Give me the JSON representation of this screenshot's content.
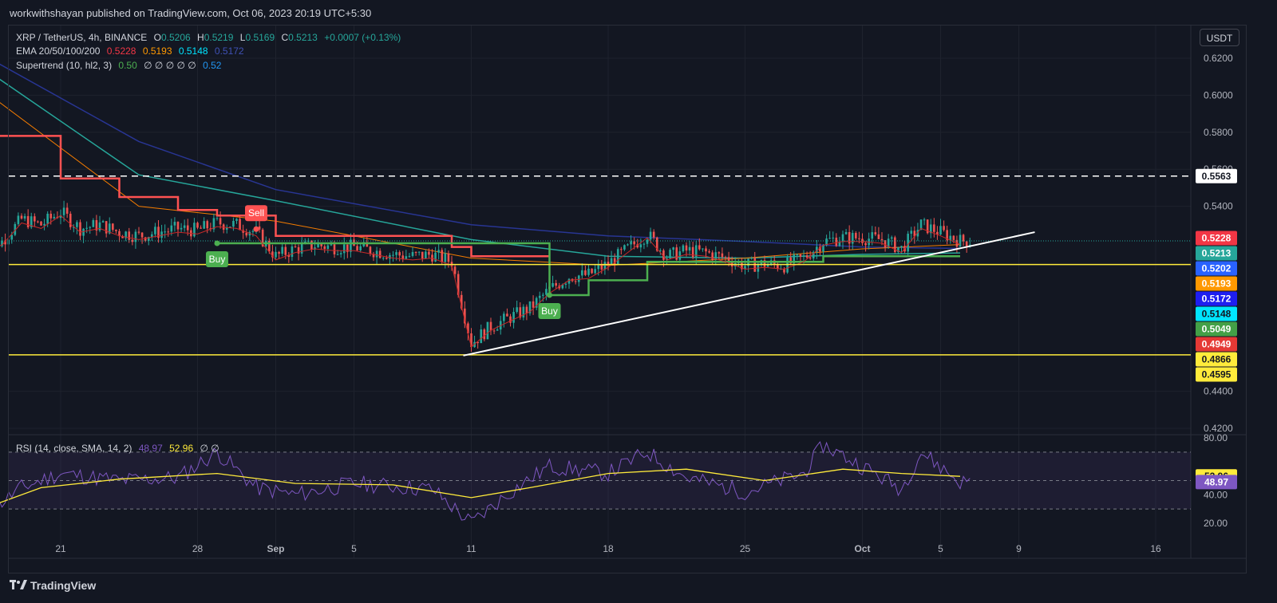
{
  "header": {
    "published": "workwithshayan published on TradingView.com, Oct 06, 2023 20:19 UTC+5:30"
  },
  "legend": {
    "symbol": "XRP / TetherUS, 4h, BINANCE",
    "o_label": "O",
    "o": "0.5206",
    "h_label": "H",
    "h": "0.5219",
    "l_label": "L",
    "l": "0.5169",
    "c_label": "C",
    "c": "0.5213",
    "change": "+0.0007 (+0.13%)",
    "ema_label": "EMA 20/50/100/200",
    "ema20": "0.5228",
    "ema50": "0.5193",
    "ema100": "0.5148",
    "ema200": "0.5172",
    "st_label": "Supertrend (10, hl2, 3)",
    "st_value": "0.50",
    "st_blank": "∅ ∅ ∅ ∅ ∅",
    "st_value2": "0.52",
    "rsi_label": "RSI (14, close, SMA, 14, 2)",
    "rsi_value": "48.97",
    "rsi_sma": "52.96",
    "rsi_blank": "∅ ∅"
  },
  "currency_button": "USDT",
  "footer": {
    "brand": "TradingView",
    "logo_icon": "tradingview-logo-icon"
  },
  "colors": {
    "bg": "#131722",
    "up": "#26a69a",
    "down": "#ef5350",
    "grid": "#1e222d",
    "ema20": "#f23645",
    "ema50": "#ff9800",
    "ema100": "#00bcd4",
    "ema200": "#2a2e9e",
    "st_up": "#4caf50",
    "st_down": "#ff5252",
    "level": "#ffeb3b",
    "rsi": "#7e57c2",
    "rsi_sma": "#ffeb3b"
  },
  "chart_data": {
    "type": "candlestick",
    "symbol": "XRP / TetherUS",
    "timeframe": "4h",
    "exchange": "BINANCE",
    "price_axis": {
      "ticks": [
        "0.6200",
        "0.6000",
        "0.5800",
        "0.5600",
        "0.5400",
        "0.4400",
        "0.4200"
      ],
      "range": [
        0.415,
        0.627
      ]
    },
    "time_axis": {
      "ticks": [
        "21",
        "28",
        "Sep",
        "5",
        "11",
        "18",
        "25",
        "Oct",
        "5",
        "9",
        "16"
      ],
      "dates": [
        "2023-08-21",
        "2023-08-28",
        "2023-09-01",
        "2023-09-05",
        "2023-09-11",
        "2023-09-18",
        "2023-09-25",
        "2023-10-01",
        "2023-10-05",
        "2023-10-09",
        "2023-10-16"
      ]
    },
    "price_labels": [
      {
        "text": "0.5563",
        "value": 0.5563,
        "bg": "#ffffff",
        "fg": "#131722"
      },
      {
        "text": "0.5228",
        "value": 0.5228,
        "bg": "#f23645",
        "fg": "#ffffff"
      },
      {
        "text": "0.5213",
        "value": 0.5213,
        "bg": "#26a69a",
        "fg": "#ffffff"
      },
      {
        "text": "0.5202",
        "value": 0.5202,
        "bg": "#2962ff",
        "fg": "#ffffff"
      },
      {
        "text": "0.5193",
        "value": 0.5193,
        "bg": "#ff9800",
        "fg": "#ffffff"
      },
      {
        "text": "0.5172",
        "value": 0.5172,
        "bg": "#1e1ef0",
        "fg": "#ffffff"
      },
      {
        "text": "0.5148",
        "value": 0.5148,
        "bg": "#00e5ff",
        "fg": "#131722"
      },
      {
        "text": "0.5049",
        "value": 0.5049,
        "bg": "#43a047",
        "fg": "#ffffff"
      },
      {
        "text": "0.4949",
        "value": 0.4949,
        "bg": "#e53935",
        "fg": "#ffffff"
      },
      {
        "text": "0.4866",
        "value": 0.4866,
        "bg": "#ffeb3b",
        "fg": "#131722"
      },
      {
        "text": "0.4595",
        "value": 0.4595,
        "bg": "#ffeb3b",
        "fg": "#131722"
      }
    ],
    "levels": {
      "resistance_dashed": 0.5563,
      "support_upper": 0.5085,
      "support_lower": 0.4597
    },
    "trendline": {
      "from": {
        "date": "2023-09-11",
        "price": 0.4593
      },
      "to": {
        "date": "2023-10-09",
        "price": 0.526
      }
    },
    "signals": [
      {
        "label": "Buy",
        "date": "2023-08-29",
        "type": "buy"
      },
      {
        "label": "Sell",
        "date": "2023-08-31",
        "type": "sell"
      },
      {
        "label": "Buy",
        "date": "2023-09-15",
        "type": "buy"
      }
    ],
    "close_path": [
      [
        "2023-08-17",
        0.518
      ],
      [
        "2023-08-18",
        0.521
      ],
      [
        "2023-08-19",
        0.533
      ],
      [
        "2023-08-20",
        0.53
      ],
      [
        "2023-08-21",
        0.537
      ],
      [
        "2023-08-22",
        0.528
      ],
      [
        "2023-08-23",
        0.53
      ],
      [
        "2023-08-24",
        0.526
      ],
      [
        "2023-08-25",
        0.524
      ],
      [
        "2023-08-26",
        0.526
      ],
      [
        "2023-08-27",
        0.528
      ],
      [
        "2023-08-28",
        0.527
      ],
      [
        "2023-08-29",
        0.531
      ],
      [
        "2023-08-30",
        0.53
      ],
      [
        "2023-08-31",
        0.526
      ],
      [
        "2023-09-01",
        0.513
      ],
      [
        "2023-09-02",
        0.517
      ],
      [
        "2023-09-03",
        0.519
      ],
      [
        "2023-09-04",
        0.518
      ],
      [
        "2023-09-05",
        0.518
      ],
      [
        "2023-09-06",
        0.516
      ],
      [
        "2023-09-07",
        0.514
      ],
      [
        "2023-09-08",
        0.513
      ],
      [
        "2023-09-09",
        0.514
      ],
      [
        "2023-09-10",
        0.51
      ],
      [
        "2023-09-11",
        0.466
      ],
      [
        "2023-09-12",
        0.475
      ],
      [
        "2023-09-13",
        0.48
      ],
      [
        "2023-09-14",
        0.485
      ],
      [
        "2023-09-15",
        0.495
      ],
      [
        "2023-09-16",
        0.502
      ],
      [
        "2023-09-17",
        0.503
      ],
      [
        "2023-09-18",
        0.509
      ],
      [
        "2023-09-19",
        0.517
      ],
      [
        "2023-09-20",
        0.525
      ],
      [
        "2023-09-21",
        0.513
      ],
      [
        "2023-09-22",
        0.516
      ],
      [
        "2023-09-23",
        0.515
      ],
      [
        "2023-09-24",
        0.512
      ],
      [
        "2023-09-25",
        0.508
      ],
      [
        "2023-09-26",
        0.509
      ],
      [
        "2023-09-27",
        0.508
      ],
      [
        "2023-09-28",
        0.512
      ],
      [
        "2023-09-29",
        0.521
      ],
      [
        "2023-09-30",
        0.523
      ],
      [
        "2023-10-01",
        0.523
      ],
      [
        "2023-10-02",
        0.522
      ],
      [
        "2023-10-03",
        0.517
      ],
      [
        "2023-10-04",
        0.53
      ],
      [
        "2023-10-05",
        0.526
      ],
      [
        "2023-10-06",
        0.5213
      ]
    ],
    "ema200_path": [
      [
        "2023-08-17",
        0.622
      ],
      [
        "2023-08-25",
        0.575
      ],
      [
        "2023-09-01",
        0.549
      ],
      [
        "2023-09-11",
        0.53
      ],
      [
        "2023-09-18",
        0.524
      ],
      [
        "2023-09-25",
        0.521
      ],
      [
        "2023-10-01",
        0.518
      ],
      [
        "2023-10-06",
        0.5172
      ]
    ],
    "ema100_path": [
      [
        "2023-08-17",
        0.615
      ],
      [
        "2023-08-25",
        0.557
      ],
      [
        "2023-09-01",
        0.543
      ],
      [
        "2023-09-11",
        0.522
      ],
      [
        "2023-09-18",
        0.513
      ],
      [
        "2023-09-25",
        0.512
      ],
      [
        "2023-10-01",
        0.514
      ],
      [
        "2023-10-06",
        0.5148
      ]
    ],
    "ema50_path": [
      [
        "2023-08-17",
        0.603
      ],
      [
        "2023-08-25",
        0.54
      ],
      [
        "2023-09-01",
        0.532
      ],
      [
        "2023-09-11",
        0.512
      ],
      [
        "2023-09-18",
        0.508
      ],
      [
        "2023-09-25",
        0.512
      ],
      [
        "2023-10-01",
        0.517
      ],
      [
        "2023-10-06",
        0.5193
      ]
    ],
    "supertrend_down": [
      [
        "2023-08-17",
        0.578
      ],
      [
        "2023-08-21",
        0.555
      ],
      [
        "2023-08-24",
        0.545
      ],
      [
        "2023-08-27",
        0.538
      ],
      [
        "2023-08-29",
        0.535
      ],
      [
        "2023-09-01",
        0.524
      ],
      [
        "2023-09-10",
        0.518
      ],
      [
        "2023-09-11",
        0.513
      ],
      [
        "2023-09-15",
        0.513
      ]
    ],
    "supertrend_up": [
      [
        "2023-08-29",
        0.52
      ],
      [
        "2023-08-31",
        0.52
      ],
      [
        "2023-09-15",
        0.492
      ],
      [
        "2023-09-17",
        0.5
      ],
      [
        "2023-09-20",
        0.51
      ],
      [
        "2023-09-28",
        0.51
      ],
      [
        "2023-09-29",
        0.513
      ],
      [
        "2023-10-06",
        0.513
      ]
    ],
    "rsi": {
      "axis_ticks": [
        "80.00",
        "40.00",
        "20.00"
      ],
      "range": [
        10,
        84
      ],
      "bands": {
        "upper": 70,
        "middle": 50,
        "lower": 30
      },
      "rsi_path": [
        [
          "2023-08-17",
          25
        ],
        [
          "2023-08-19",
          45
        ],
        [
          "2023-08-21",
          55
        ],
        [
          "2023-08-24",
          50
        ],
        [
          "2023-08-27",
          52
        ],
        [
          "2023-08-29",
          70
        ],
        [
          "2023-08-31",
          45
        ],
        [
          "2023-09-02",
          40
        ],
        [
          "2023-09-05",
          48
        ],
        [
          "2023-09-09",
          44
        ],
        [
          "2023-09-11",
          20
        ],
        [
          "2023-09-13",
          42
        ],
        [
          "2023-09-15",
          60
        ],
        [
          "2023-09-18",
          55
        ],
        [
          "2023-09-20",
          70
        ],
        [
          "2023-09-22",
          52
        ],
        [
          "2023-09-25",
          42
        ],
        [
          "2023-09-28",
          55
        ],
        [
          "2023-09-29",
          75
        ],
        [
          "2023-10-01",
          60
        ],
        [
          "2023-10-03",
          44
        ],
        [
          "2023-10-04",
          70
        ],
        [
          "2023-10-06",
          48.97
        ]
      ],
      "sma_path": [
        [
          "2023-08-17",
          30
        ],
        [
          "2023-08-20",
          45
        ],
        [
          "2023-08-24",
          51
        ],
        [
          "2023-08-29",
          55
        ],
        [
          "2023-09-02",
          48
        ],
        [
          "2023-09-07",
          47
        ],
        [
          "2023-09-11",
          38
        ],
        [
          "2023-09-14",
          45
        ],
        [
          "2023-09-18",
          55
        ],
        [
          "2023-09-22",
          58
        ],
        [
          "2023-09-26",
          50
        ],
        [
          "2023-09-30",
          58
        ],
        [
          "2023-10-03",
          55
        ],
        [
          "2023-10-06",
          52.96
        ]
      ]
    }
  }
}
